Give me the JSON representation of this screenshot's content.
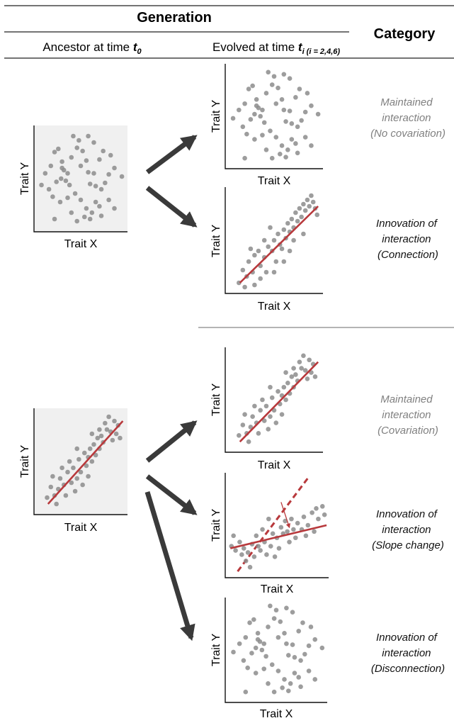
{
  "header": {
    "generation": "Generation",
    "category": "Category",
    "ancestor_prefix": "Ancestor at time ",
    "ancestor_t": "t",
    "ancestor_sub": "0",
    "evolved_prefix": "Evolved at time ",
    "evolved_t": "t",
    "evolved_sub": "i (i = 2,4,6)"
  },
  "axis": {
    "x": "Trait X",
    "y": "Trait Y"
  },
  "categories": {
    "a1": [
      "Maintained",
      "interaction",
      "(No covariation)"
    ],
    "a2": [
      "Innovation of",
      "interaction",
      "(Connection)"
    ],
    "b1": [
      "Maintained",
      "interaction",
      "(Covariation)"
    ],
    "b2": [
      "Innovation of",
      "interaction",
      "(Slope change)"
    ],
    "b3": [
      "Innovation of",
      "interaction",
      "(Disconnection)"
    ]
  },
  "colors": {
    "category_maintained": "#808080",
    "category_innovation": "#111111",
    "point": "#8c8c8c",
    "fit_line": "#b8393c",
    "arrow": "#3a3a3a",
    "ancestor_bg": "#f0f0f0"
  },
  "chart_data": [
    {
      "type": "scatter",
      "role": "ancestor-no-covariation",
      "points": [
        [
          0.08,
          0.44
        ],
        [
          0.18,
          0.62
        ],
        [
          0.24,
          0.47
        ],
        [
          0.29,
          0.5
        ],
        [
          0.32,
          0.58
        ],
        [
          0.34,
          0.48
        ],
        [
          0.36,
          0.55
        ],
        [
          0.3,
          0.66
        ],
        [
          0.22,
          0.75
        ],
        [
          0.26,
          0.78
        ],
        [
          0.4,
          0.7
        ],
        [
          0.46,
          0.79
        ],
        [
          0.52,
          0.76
        ],
        [
          0.5,
          0.62
        ],
        [
          0.56,
          0.67
        ],
        [
          0.58,
          0.56
        ],
        [
          0.64,
          0.55
        ],
        [
          0.6,
          0.45
        ],
        [
          0.66,
          0.43
        ],
        [
          0.72,
          0.4
        ],
        [
          0.76,
          0.46
        ],
        [
          0.8,
          0.54
        ],
        [
          0.86,
          0.6
        ],
        [
          0.94,
          0.52
        ],
        [
          0.7,
          0.68
        ],
        [
          0.74,
          0.76
        ],
        [
          0.82,
          0.72
        ],
        [
          0.64,
          0.84
        ],
        [
          0.58,
          0.9
        ],
        [
          0.48,
          0.86
        ],
        [
          0.42,
          0.9
        ],
        [
          0.16,
          0.4
        ],
        [
          0.2,
          0.33
        ],
        [
          0.28,
          0.28
        ],
        [
          0.36,
          0.32
        ],
        [
          0.44,
          0.36
        ],
        [
          0.5,
          0.3
        ],
        [
          0.56,
          0.22
        ],
        [
          0.62,
          0.18
        ],
        [
          0.66,
          0.28
        ],
        [
          0.7,
          0.24
        ],
        [
          0.54,
          0.14
        ],
        [
          0.6,
          0.12
        ],
        [
          0.72,
          0.15
        ],
        [
          0.8,
          0.3
        ],
        [
          0.86,
          0.22
        ],
        [
          0.4,
          0.18
        ],
        [
          0.46,
          0.1
        ],
        [
          0.3,
          0.6
        ],
        [
          0.38,
          0.44
        ],
        [
          0.22,
          0.12
        ],
        [
          0.12,
          0.55
        ]
      ],
      "trend": null
    },
    {
      "type": "scatter",
      "role": "evolved-no-covariation",
      "points": [
        [
          0.08,
          0.48
        ],
        [
          0.2,
          0.62
        ],
        [
          0.26,
          0.47
        ],
        [
          0.3,
          0.52
        ],
        [
          0.34,
          0.58
        ],
        [
          0.36,
          0.5
        ],
        [
          0.38,
          0.56
        ],
        [
          0.32,
          0.66
        ],
        [
          0.24,
          0.76
        ],
        [
          0.28,
          0.79
        ],
        [
          0.42,
          0.72
        ],
        [
          0.48,
          0.8
        ],
        [
          0.54,
          0.77
        ],
        [
          0.52,
          0.62
        ],
        [
          0.58,
          0.66
        ],
        [
          0.6,
          0.56
        ],
        [
          0.66,
          0.55
        ],
        [
          0.62,
          0.45
        ],
        [
          0.68,
          0.43
        ],
        [
          0.74,
          0.4
        ],
        [
          0.78,
          0.46
        ],
        [
          0.82,
          0.54
        ],
        [
          0.88,
          0.6
        ],
        [
          0.95,
          0.52
        ],
        [
          0.72,
          0.68
        ],
        [
          0.76,
          0.76
        ],
        [
          0.84,
          0.72
        ],
        [
          0.66,
          0.86
        ],
        [
          0.6,
          0.9
        ],
        [
          0.5,
          0.88
        ],
        [
          0.44,
          0.92
        ],
        [
          0.18,
          0.4
        ],
        [
          0.22,
          0.33
        ],
        [
          0.3,
          0.28
        ],
        [
          0.38,
          0.32
        ],
        [
          0.46,
          0.36
        ],
        [
          0.52,
          0.3
        ],
        [
          0.58,
          0.22
        ],
        [
          0.64,
          0.18
        ],
        [
          0.68,
          0.28
        ],
        [
          0.72,
          0.24
        ],
        [
          0.56,
          0.14
        ],
        [
          0.62,
          0.11
        ],
        [
          0.74,
          0.15
        ],
        [
          0.82,
          0.3
        ],
        [
          0.88,
          0.22
        ],
        [
          0.42,
          0.18
        ],
        [
          0.48,
          0.1
        ],
        [
          0.32,
          0.6
        ],
        [
          0.4,
          0.44
        ],
        [
          0.2,
          0.1
        ],
        [
          0.14,
          0.56
        ]
      ],
      "trend": null
    },
    {
      "type": "scatter",
      "role": "evolved-connection",
      "points": [
        [
          0.14,
          0.1
        ],
        [
          0.18,
          0.22
        ],
        [
          0.22,
          0.16
        ],
        [
          0.24,
          0.3
        ],
        [
          0.28,
          0.2
        ],
        [
          0.3,
          0.36
        ],
        [
          0.34,
          0.4
        ],
        [
          0.36,
          0.26
        ],
        [
          0.4,
          0.34
        ],
        [
          0.42,
          0.2
        ],
        [
          0.44,
          0.44
        ],
        [
          0.48,
          0.4
        ],
        [
          0.5,
          0.5
        ],
        [
          0.52,
          0.3
        ],
        [
          0.54,
          0.56
        ],
        [
          0.56,
          0.46
        ],
        [
          0.58,
          0.42
        ],
        [
          0.6,
          0.6
        ],
        [
          0.62,
          0.52
        ],
        [
          0.64,
          0.66
        ],
        [
          0.66,
          0.58
        ],
        [
          0.68,
          0.7
        ],
        [
          0.7,
          0.62
        ],
        [
          0.72,
          0.76
        ],
        [
          0.74,
          0.68
        ],
        [
          0.76,
          0.8
        ],
        [
          0.78,
          0.72
        ],
        [
          0.8,
          0.84
        ],
        [
          0.82,
          0.78
        ],
        [
          0.84,
          0.88
        ],
        [
          0.86,
          0.82
        ],
        [
          0.88,
          0.92
        ],
        [
          0.9,
          0.86
        ],
        [
          0.92,
          0.8
        ],
        [
          0.94,
          0.74
        ],
        [
          0.7,
          0.5
        ],
        [
          0.6,
          0.3
        ],
        [
          0.4,
          0.5
        ],
        [
          0.3,
          0.08
        ],
        [
          0.2,
          0.06
        ],
        [
          0.5,
          0.2
        ],
        [
          0.8,
          0.56
        ],
        [
          0.66,
          0.4
        ],
        [
          0.46,
          0.62
        ],
        [
          0.36,
          0.14
        ],
        [
          0.26,
          0.42
        ]
      ],
      "trend": [
        [
          0.15,
          0.1
        ],
        [
          0.95,
          0.82
        ]
      ]
    },
    {
      "type": "scatter",
      "role": "ancestor-covariation",
      "points": [
        [
          0.14,
          0.16
        ],
        [
          0.18,
          0.26
        ],
        [
          0.22,
          0.18
        ],
        [
          0.26,
          0.24
        ],
        [
          0.28,
          0.34
        ],
        [
          0.32,
          0.28
        ],
        [
          0.34,
          0.18
        ],
        [
          0.36,
          0.4
        ],
        [
          0.4,
          0.3
        ],
        [
          0.42,
          0.44
        ],
        [
          0.44,
          0.22
        ],
        [
          0.46,
          0.34
        ],
        [
          0.48,
          0.52
        ],
        [
          0.5,
          0.4
        ],
        [
          0.52,
          0.28
        ],
        [
          0.54,
          0.58
        ],
        [
          0.56,
          0.46
        ],
        [
          0.58,
          0.54
        ],
        [
          0.6,
          0.62
        ],
        [
          0.62,
          0.5
        ],
        [
          0.64,
          0.66
        ],
        [
          0.66,
          0.56
        ],
        [
          0.68,
          0.72
        ],
        [
          0.7,
          0.62
        ],
        [
          0.72,
          0.74
        ],
        [
          0.74,
          0.68
        ],
        [
          0.76,
          0.86
        ],
        [
          0.78,
          0.8
        ],
        [
          0.8,
          0.92
        ],
        [
          0.82,
          0.78
        ],
        [
          0.84,
          0.7
        ],
        [
          0.86,
          0.88
        ],
        [
          0.88,
          0.76
        ],
        [
          0.9,
          0.84
        ],
        [
          0.92,
          0.72
        ],
        [
          0.3,
          0.44
        ],
        [
          0.38,
          0.5
        ],
        [
          0.24,
          0.1
        ],
        [
          0.58,
          0.36
        ],
        [
          0.7,
          0.8
        ],
        [
          0.46,
          0.62
        ],
        [
          0.62,
          0.76
        ],
        [
          0.2,
          0.36
        ]
      ],
      "trend": [
        [
          0.15,
          0.1
        ],
        [
          0.95,
          0.88
        ]
      ]
    },
    {
      "type": "scatter",
      "role": "evolved-covariation",
      "points": [
        [
          0.14,
          0.16
        ],
        [
          0.18,
          0.26
        ],
        [
          0.22,
          0.18
        ],
        [
          0.26,
          0.24
        ],
        [
          0.28,
          0.34
        ],
        [
          0.32,
          0.28
        ],
        [
          0.34,
          0.18
        ],
        [
          0.36,
          0.4
        ],
        [
          0.4,
          0.3
        ],
        [
          0.42,
          0.44
        ],
        [
          0.44,
          0.22
        ],
        [
          0.46,
          0.34
        ],
        [
          0.48,
          0.52
        ],
        [
          0.5,
          0.4
        ],
        [
          0.52,
          0.28
        ],
        [
          0.54,
          0.58
        ],
        [
          0.56,
          0.46
        ],
        [
          0.58,
          0.54
        ],
        [
          0.6,
          0.62
        ],
        [
          0.62,
          0.5
        ],
        [
          0.64,
          0.66
        ],
        [
          0.66,
          0.56
        ],
        [
          0.68,
          0.72
        ],
        [
          0.7,
          0.62
        ],
        [
          0.72,
          0.74
        ],
        [
          0.74,
          0.68
        ],
        [
          0.76,
          0.86
        ],
        [
          0.78,
          0.8
        ],
        [
          0.8,
          0.92
        ],
        [
          0.82,
          0.78
        ],
        [
          0.84,
          0.7
        ],
        [
          0.86,
          0.88
        ],
        [
          0.88,
          0.76
        ],
        [
          0.9,
          0.84
        ],
        [
          0.92,
          0.72
        ],
        [
          0.3,
          0.44
        ],
        [
          0.38,
          0.5
        ],
        [
          0.24,
          0.1
        ],
        [
          0.58,
          0.36
        ],
        [
          0.7,
          0.8
        ],
        [
          0.46,
          0.62
        ],
        [
          0.62,
          0.76
        ],
        [
          0.2,
          0.36
        ]
      ],
      "trend": [
        [
          0.15,
          0.1
        ],
        [
          0.95,
          0.86
        ]
      ]
    },
    {
      "type": "scatter",
      "role": "evolved-slope-change",
      "points": [
        [
          0.06,
          0.3
        ],
        [
          0.1,
          0.26
        ],
        [
          0.14,
          0.34
        ],
        [
          0.16,
          0.22
        ],
        [
          0.18,
          0.28
        ],
        [
          0.2,
          0.16
        ],
        [
          0.22,
          0.24
        ],
        [
          0.26,
          0.32
        ],
        [
          0.28,
          0.2
        ],
        [
          0.3,
          0.4
        ],
        [
          0.32,
          0.3
        ],
        [
          0.34,
          0.26
        ],
        [
          0.36,
          0.46
        ],
        [
          0.38,
          0.34
        ],
        [
          0.4,
          0.22
        ],
        [
          0.42,
          0.56
        ],
        [
          0.44,
          0.3
        ],
        [
          0.46,
          0.42
        ],
        [
          0.5,
          0.38
        ],
        [
          0.52,
          0.28
        ],
        [
          0.54,
          0.48
        ],
        [
          0.56,
          0.42
        ],
        [
          0.58,
          0.54
        ],
        [
          0.6,
          0.44
        ],
        [
          0.62,
          0.34
        ],
        [
          0.66,
          0.46
        ],
        [
          0.68,
          0.38
        ],
        [
          0.7,
          0.52
        ],
        [
          0.74,
          0.46
        ],
        [
          0.76,
          0.58
        ],
        [
          0.8,
          0.5
        ],
        [
          0.84,
          0.62
        ],
        [
          0.86,
          0.44
        ],
        [
          0.9,
          0.56
        ],
        [
          0.94,
          0.68
        ],
        [
          0.96,
          0.6
        ],
        [
          0.08,
          0.4
        ],
        [
          0.24,
          0.1
        ],
        [
          0.48,
          0.2
        ],
        [
          0.64,
          0.56
        ],
        [
          0.78,
          0.4
        ],
        [
          0.88,
          0.66
        ]
      ],
      "trend": [
        [
          0.05,
          0.28
        ],
        [
          0.98,
          0.5
        ]
      ],
      "previous_trend": [
        [
          0.12,
          0.06
        ],
        [
          0.8,
          0.95
        ]
      ],
      "shift_arrow": [
        [
          0.54,
          0.72
        ],
        [
          0.62,
          0.48
        ]
      ]
    },
    {
      "type": "scatter",
      "role": "evolved-disconnection",
      "points": [
        [
          0.08,
          0.48
        ],
        [
          0.2,
          0.62
        ],
        [
          0.26,
          0.47
        ],
        [
          0.3,
          0.52
        ],
        [
          0.34,
          0.58
        ],
        [
          0.36,
          0.5
        ],
        [
          0.38,
          0.56
        ],
        [
          0.32,
          0.66
        ],
        [
          0.24,
          0.76
        ],
        [
          0.28,
          0.79
        ],
        [
          0.42,
          0.72
        ],
        [
          0.48,
          0.8
        ],
        [
          0.54,
          0.77
        ],
        [
          0.52,
          0.62
        ],
        [
          0.58,
          0.66
        ],
        [
          0.6,
          0.56
        ],
        [
          0.66,
          0.55
        ],
        [
          0.62,
          0.45
        ],
        [
          0.68,
          0.43
        ],
        [
          0.74,
          0.4
        ],
        [
          0.78,
          0.46
        ],
        [
          0.82,
          0.54
        ],
        [
          0.88,
          0.6
        ],
        [
          0.95,
          0.52
        ],
        [
          0.72,
          0.68
        ],
        [
          0.76,
          0.76
        ],
        [
          0.84,
          0.72
        ],
        [
          0.66,
          0.86
        ],
        [
          0.6,
          0.9
        ],
        [
          0.5,
          0.88
        ],
        [
          0.44,
          0.92
        ],
        [
          0.18,
          0.4
        ],
        [
          0.22,
          0.33
        ],
        [
          0.3,
          0.28
        ],
        [
          0.38,
          0.32
        ],
        [
          0.46,
          0.36
        ],
        [
          0.52,
          0.3
        ],
        [
          0.58,
          0.22
        ],
        [
          0.64,
          0.18
        ],
        [
          0.68,
          0.28
        ],
        [
          0.72,
          0.24
        ],
        [
          0.56,
          0.14
        ],
        [
          0.62,
          0.11
        ],
        [
          0.74,
          0.15
        ],
        [
          0.82,
          0.3
        ],
        [
          0.88,
          0.22
        ],
        [
          0.42,
          0.18
        ],
        [
          0.48,
          0.1
        ],
        [
          0.32,
          0.6
        ],
        [
          0.4,
          0.44
        ],
        [
          0.2,
          0.1
        ],
        [
          0.14,
          0.56
        ]
      ],
      "trend": null
    }
  ]
}
